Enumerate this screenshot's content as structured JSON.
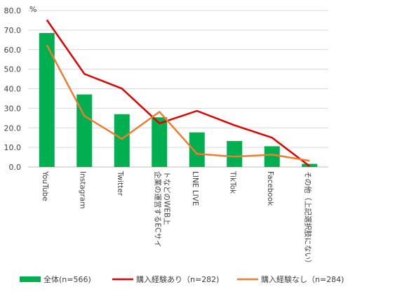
{
  "chart_data": {
    "type": "bar",
    "unit": "%",
    "ylim": [
      0,
      80
    ],
    "yticks": [
      "0.0",
      "10.0",
      "20.0",
      "30.0",
      "40.0",
      "50.0",
      "60.0",
      "70.0",
      "80.0"
    ],
    "grid": true,
    "legend_position": "bottom",
    "categories": [
      "YouTube",
      "Instagram",
      "Twitter",
      "企業の運営するECサイトなどのWEB上",
      "LINE LIVE",
      "TikTok",
      "Facebook",
      "その他（上記選択肢にない）"
    ],
    "series": [
      {
        "name": "全体(n=566)",
        "kind": "bar",
        "color": "#00b050",
        "values": [
          68.5,
          37.1,
          27.0,
          25.4,
          17.7,
          13.3,
          10.6,
          1.6
        ]
      },
      {
        "name": "購入経験あり（n=282)",
        "kind": "line",
        "color": "#e00000",
        "values": [
          75.2,
          47.6,
          40.1,
          22.3,
          28.7,
          21.3,
          15.0,
          0.4
        ]
      },
      {
        "name": "購入経験なし（n=284)",
        "kind": "line",
        "color": "#ed7d31",
        "values": [
          62.3,
          26.1,
          14.4,
          28.2,
          6.7,
          5.3,
          6.3,
          3.2
        ]
      }
    ]
  }
}
